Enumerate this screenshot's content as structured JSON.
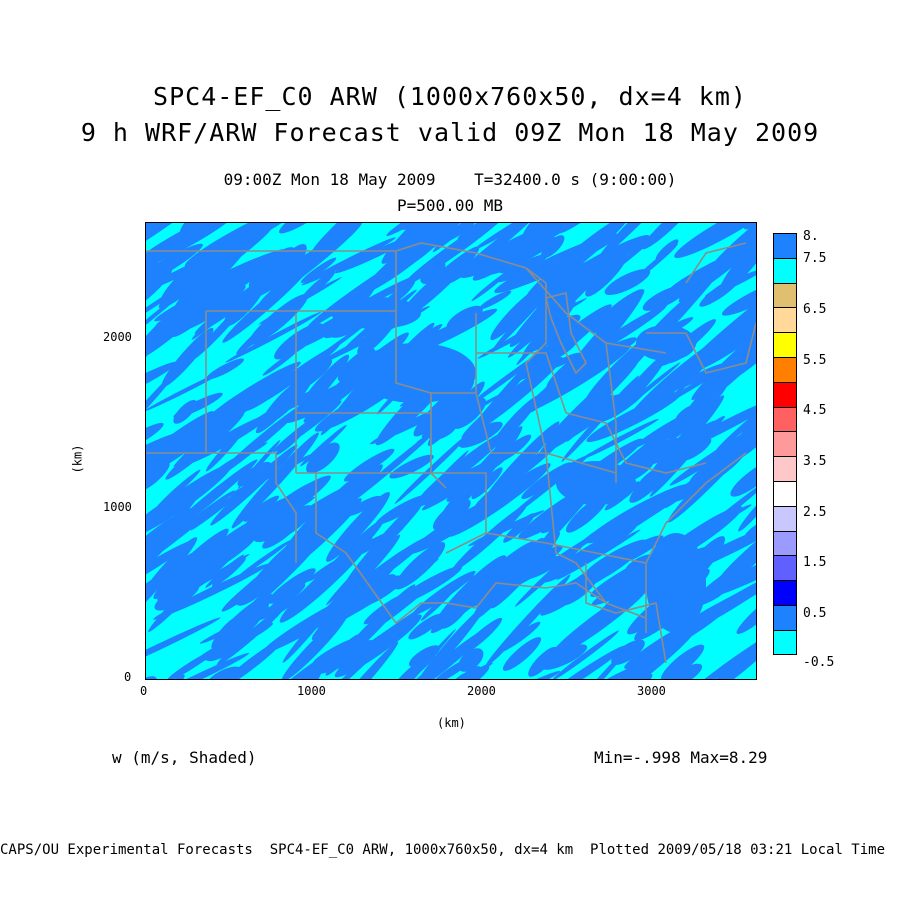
{
  "header": {
    "title1": "SPC4-EF_C0 ARW (1000x760x50, dx=4 km)",
    "title2": "9 h WRF/ARW Forecast valid 09Z Mon 18 May 2009",
    "time_line": "09:00Z Mon 18 May 2009    T=32400.0 s (9:00:00)",
    "level_line": "P=500.00 MB"
  },
  "axes": {
    "x_unit": "(km)",
    "y_unit": "(km)",
    "x_ticks": [
      "0",
      "1000",
      "2000",
      "3000"
    ],
    "y_ticks": [
      "0",
      "1000",
      "2000"
    ]
  },
  "variable_label": "w (m/s, Shaded)",
  "minmax": "Min=-.998 Max=8.29",
  "footer": "CAPS/OU Experimental Forecasts  SPC4-EF_C0 ARW, 1000x760x50, dx=4 km  Plotted 2009/05/18 03:21 Local Time",
  "colorbar": {
    "labels": [
      "8.",
      "7.5",
      "6.5",
      "5.5",
      "4.5",
      "3.5",
      "2.5",
      "1.5",
      "0.5",
      "-0.5"
    ],
    "colors": [
      "#1e82ff",
      "#00ffff",
      "#e0c070",
      "#ffd89a",
      "#ffff00",
      "#ff8000",
      "#ff0000",
      "#ff6060",
      "#ff9a9a",
      "#ffc8c8",
      "#ffffff",
      "#c8c8ff",
      "#9a9aff",
      "#6060ff",
      "#0000ff",
      "#1e82ff",
      "#00ffff"
    ]
  },
  "map_colors": {
    "base": "#00ffff",
    "streak": "#1e82ff",
    "boundary": "#8c8c8c"
  }
}
